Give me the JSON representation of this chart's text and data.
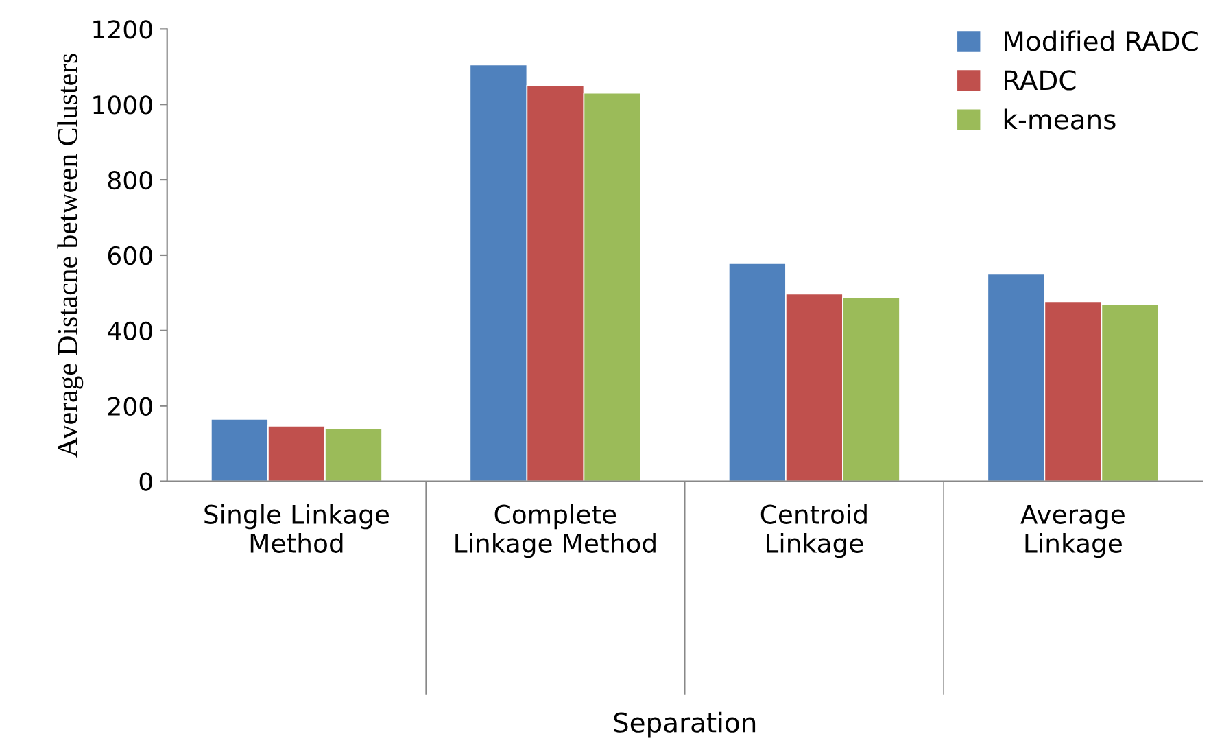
{
  "chart_data": {
    "type": "bar",
    "annotations": [
      "Separation"
    ],
    "ylabel": "Average Distacne between Clusters",
    "categories": [
      "Single Linkage\nMethod",
      "Complete\nLinkage Method",
      "Centroid\nLinkage",
      "Average\nLinkage"
    ],
    "series": [
      {
        "name": "Modified RADC",
        "color": "#4f81bd",
        "values": [
          165,
          1105,
          578,
          550
        ]
      },
      {
        "name": "RADC",
        "color": "#c0504d",
        "values": [
          147,
          1050,
          497,
          477
        ]
      },
      {
        "name": "k-means",
        "color": "#9bbb59",
        "values": [
          141,
          1030,
          487,
          469
        ]
      }
    ],
    "ylim": [
      0,
      1200
    ],
    "yticks": [
      0,
      200,
      400,
      600,
      800,
      1000,
      1200
    ],
    "legend": "top right",
    "grid": false
  }
}
